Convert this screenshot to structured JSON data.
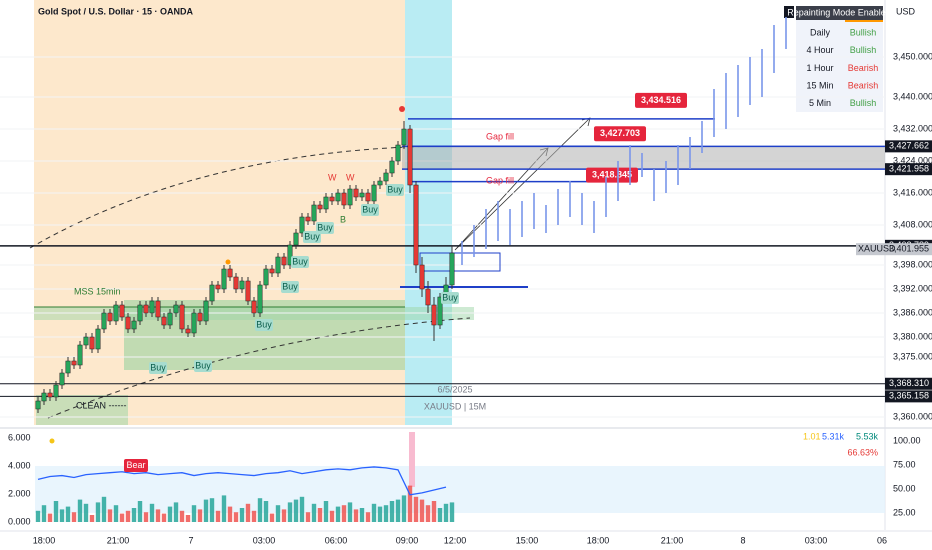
{
  "header": {
    "title": "Gold Spot / U.S. Dollar · 15 · OANDA",
    "currency": "USD"
  },
  "chart_data": [
    {
      "type": "candlestick",
      "ylim": [
        3358,
        3464.25
      ],
      "yticks": [
        {
          "value": 3360,
          "label": "3,360.000"
        },
        {
          "value": 3375,
          "label": "3,375.000"
        },
        {
          "value": 3380,
          "label": "3,380.000"
        },
        {
          "value": 3386,
          "label": "3,386.000"
        },
        {
          "value": 3392,
          "label": "3,392.000"
        },
        {
          "value": 3398,
          "label": "3,398.000"
        },
        {
          "value": 3408,
          "label": "3,408.000"
        },
        {
          "value": 3416,
          "label": "3,416.000"
        },
        {
          "value": 3424,
          "label": "3,424.000"
        },
        {
          "value": 3432,
          "label": "3,432.000"
        },
        {
          "value": 3440,
          "label": "3,440.000"
        },
        {
          "value": 3450,
          "label": "3,450.000"
        }
      ],
      "time_labels": [
        "18:00",
        "21:00",
        "7",
        "03:00",
        "06:00",
        "09:00",
        "12:00",
        "15:00",
        "18:00",
        "21:00",
        "8",
        "03:00",
        "06"
      ],
      "ohlc": [
        [
          3362,
          3365,
          3361,
          3364
        ],
        [
          3364,
          3367,
          3363,
          3366
        ],
        [
          3366,
          3367,
          3364,
          3365
        ],
        [
          3365,
          3369,
          3364,
          3368
        ],
        [
          3368,
          3372,
          3367,
          3371
        ],
        [
          3371,
          3375,
          3370,
          3374
        ],
        [
          3374,
          3375,
          3372,
          3373
        ],
        [
          3373,
          3379,
          3372,
          3378
        ],
        [
          3378,
          3381,
          3377,
          3380
        ],
        [
          3380,
          3381,
          3376,
          3377
        ],
        [
          3377,
          3383,
          3376,
          3382
        ],
        [
          3382,
          3387,
          3381,
          3386
        ],
        [
          3386,
          3387,
          3383,
          3384
        ],
        [
          3384,
          3389,
          3383,
          3388
        ],
        [
          3388,
          3389,
          3384,
          3385
        ],
        [
          3385,
          3386,
          3381,
          3382
        ],
        [
          3382,
          3385,
          3381,
          3384
        ],
        [
          3384,
          3389,
          3383,
          3388
        ],
        [
          3388,
          3389,
          3385,
          3386
        ],
        [
          3386,
          3390,
          3385,
          3389
        ],
        [
          3389,
          3390,
          3384,
          3385
        ],
        [
          3385,
          3386,
          3382,
          3383
        ],
        [
          3383,
          3387,
          3382,
          3386
        ],
        [
          3386,
          3389,
          3385,
          3388
        ],
        [
          3388,
          3389,
          3381,
          3382
        ],
        [
          3382,
          3383,
          3380,
          3381
        ],
        [
          3381,
          3387,
          3380,
          3386
        ],
        [
          3386,
          3387,
          3383,
          3384
        ],
        [
          3384,
          3390,
          3383,
          3389
        ],
        [
          3389,
          3394,
          3388,
          3393
        ],
        [
          3393,
          3394,
          3391,
          3392
        ],
        [
          3392,
          3398,
          3391,
          3397
        ],
        [
          3397,
          3398,
          3394,
          3395
        ],
        [
          3395,
          3396,
          3391,
          3392
        ],
        [
          3392,
          3395,
          3391,
          3394
        ],
        [
          3394,
          3395,
          3388,
          3389
        ],
        [
          3389,
          3390,
          3385,
          3386
        ],
        [
          3386,
          3394,
          3385,
          3393
        ],
        [
          3393,
          3398,
          3392,
          3397
        ],
        [
          3397,
          3398,
          3395,
          3396
        ],
        [
          3396,
          3401,
          3395,
          3400
        ],
        [
          3400,
          3401,
          3397,
          3398
        ],
        [
          3398,
          3404,
          3397,
          3403
        ],
        [
          3403,
          3407,
          3402,
          3406
        ],
        [
          3406,
          3411,
          3405,
          3410
        ],
        [
          3410,
          3411,
          3408,
          3409
        ],
        [
          3409,
          3414,
          3408,
          3413
        ],
        [
          3413,
          3414,
          3411,
          3412
        ],
        [
          3412,
          3416,
          3411,
          3415
        ],
        [
          3415,
          3416,
          3413,
          3414
        ],
        [
          3414,
          3417,
          3413,
          3416
        ],
        [
          3416,
          3417,
          3412,
          3413
        ],
        [
          3413,
          3418,
          3412,
          3417
        ],
        [
          3417,
          3418,
          3414,
          3415
        ],
        [
          3415,
          3417,
          3414,
          3416
        ],
        [
          3416,
          3417,
          3413,
          3414
        ],
        [
          3414,
          3419,
          3413,
          3418
        ],
        [
          3418,
          3420,
          3417,
          3419
        ],
        [
          3419,
          3422,
          3418,
          3421
        ],
        [
          3421,
          3425,
          3420,
          3424
        ],
        [
          3424,
          3429,
          3423,
          3428
        ],
        [
          3428,
          3434,
          3427,
          3432
        ],
        [
          3432,
          3433,
          3416,
          3418
        ],
        [
          3418,
          3419,
          3396,
          3398
        ],
        [
          3398,
          3400,
          3390,
          3392
        ],
        [
          3392,
          3394,
          3386,
          3388
        ],
        [
          3388,
          3390,
          3379,
          3383
        ],
        [
          3383,
          3391,
          3382,
          3390
        ],
        [
          3390,
          3395,
          3389,
          3393
        ],
        [
          3393,
          3403,
          3392,
          3401
        ]
      ],
      "projection": [
        [
          3398,
          3404
        ],
        [
          3400,
          3408
        ],
        [
          3402,
          3412
        ],
        [
          3404,
          3414
        ],
        [
          3403,
          3412
        ],
        [
          3405,
          3414
        ],
        [
          3407,
          3416
        ],
        [
          3406,
          3413
        ],
        [
          3408,
          3417
        ],
        [
          3410,
          3419
        ],
        [
          3408,
          3416
        ],
        [
          3406,
          3414
        ],
        [
          3410,
          3420
        ],
        [
          3414,
          3424
        ],
        [
          3418,
          3428
        ],
        [
          3420,
          3426
        ],
        [
          3414,
          3422
        ],
        [
          3416,
          3424
        ],
        [
          3418,
          3428
        ],
        [
          3422,
          3430
        ],
        [
          3426,
          3434
        ],
        [
          3430,
          3442
        ],
        [
          3432,
          3446
        ],
        [
          3435,
          3448
        ],
        [
          3438,
          3450
        ],
        [
          3440,
          3452
        ],
        [
          3446,
          3458
        ],
        [
          3452,
          3460
        ]
      ],
      "levels": [
        {
          "value": 3427.662,
          "label": "3,427.662"
        },
        {
          "value": 3421.958,
          "label": "3,421.958"
        },
        {
          "value": 3402.789,
          "label": "3,402.789"
        },
        {
          "value": 3368.31,
          "label": "3,368.310"
        },
        {
          "value": 3365.158,
          "label": "3,365.158"
        }
      ],
      "last_price": {
        "symbol": "XAUUSD",
        "value": 3401.955,
        "label": "3,401.955"
      },
      "targets": [
        {
          "value": 3434.516,
          "label": "3,434.516"
        },
        {
          "value": 3427.703,
          "label": "3,427.703"
        },
        {
          "value": 3418.845,
          "label": "3,418.845"
        }
      ],
      "annotations": {
        "gap_fill": [
          "Gap fill",
          "Gap fill"
        ],
        "clean": "CLEAN ------",
        "date": "6/5/2025",
        "symbol": "XAUUSD | 15M",
        "mss": "MSS 15min",
        "w": [
          "W",
          "W"
        ],
        "b": "B"
      },
      "signals": [
        "Buy",
        "Buy",
        "Buy",
        "Buy",
        "Buy",
        "Buy",
        "Buy",
        "Buy",
        "Buy",
        "Buy"
      ]
    },
    {
      "type": "bar",
      "ylim": [
        0,
        6.43
      ],
      "yticks": [
        {
          "value": 0,
          "label": "0.000"
        },
        {
          "value": 2,
          "label": "2.000"
        },
        {
          "value": 4,
          "label": "4.000"
        },
        {
          "value": 6,
          "label": "6.000"
        }
      ],
      "y2lim": [
        15.6,
        109.4
      ],
      "y2ticks": [
        {
          "value": 25,
          "label": "25.00"
        },
        {
          "value": 50,
          "label": "50.00"
        },
        {
          "value": 75,
          "label": "75.00"
        },
        {
          "value": 100,
          "label": "100.00"
        }
      ],
      "values": [
        0.8,
        1.2,
        0.6,
        1.5,
        0.9,
        1.1,
        0.7,
        1.6,
        1.3,
        0.5,
        1.4,
        1.8,
        0.9,
        1.2,
        0.6,
        0.8,
        1.0,
        1.5,
        0.7,
        1.3,
        0.9,
        0.6,
        1.1,
        1.4,
        0.8,
        0.5,
        1.2,
        0.9,
        1.6,
        1.7,
        0.8,
        1.9,
        1.1,
        0.7,
        1.0,
        1.3,
        0.8,
        1.7,
        1.5,
        0.6,
        1.2,
        0.9,
        1.4,
        1.6,
        1.8,
        0.7,
        1.3,
        1.0,
        1.5,
        0.8,
        1.1,
        1.2,
        1.4,
        0.9,
        1.0,
        0.7,
        1.3,
        1.1,
        1.2,
        1.5,
        1.6,
        1.9,
        2.6,
        1.8,
        1.6,
        1.2,
        1.5,
        1.0,
        1.3,
        1.4
      ],
      "line": {
        "axis": "y2",
        "color": "#2962ff",
        "values": [
          60,
          63,
          64,
          62,
          65,
          66,
          67,
          68,
          66,
          67,
          65,
          66,
          67,
          64,
          66,
          67,
          66,
          65,
          64,
          66,
          67,
          69,
          66,
          68,
          70,
          71,
          70,
          72,
          73,
          72,
          70,
          44,
          46,
          49,
          52
        ]
      },
      "label": "Bear",
      "stats": [
        "1.01",
        "5.31k",
        "5.53k",
        "66.63%"
      ]
    }
  ],
  "trend_table": {
    "title": "Repainting Mode Enabled",
    "rows": [
      [
        "Daily",
        "Bullish"
      ],
      [
        "4 Hour",
        "Bullish"
      ],
      [
        "1 Hour",
        "Bearish"
      ],
      [
        "15 Min",
        "Bearish"
      ],
      [
        "5 Min",
        "Bullish"
      ]
    ]
  }
}
